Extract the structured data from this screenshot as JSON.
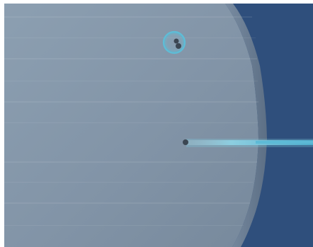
{
  "scene": {
    "colors": {
      "frame": "#ffffff",
      "border": "#2f3437",
      "background": "#2f4f7c",
      "surface_light": "#8a9daf",
      "surface_dark": "#7b8da0",
      "surface_edge": "#5d6f83",
      "beam": "#58b7d2",
      "beam_glow": "#8fd6e8",
      "ring": "#4fb3cf",
      "dot": "#3b4652"
    },
    "objects": {
      "surface": "large-disc",
      "beam": "laser-beam",
      "emitter": "beam-origin-dot",
      "target": "ringed-target-with-two-dots"
    }
  }
}
